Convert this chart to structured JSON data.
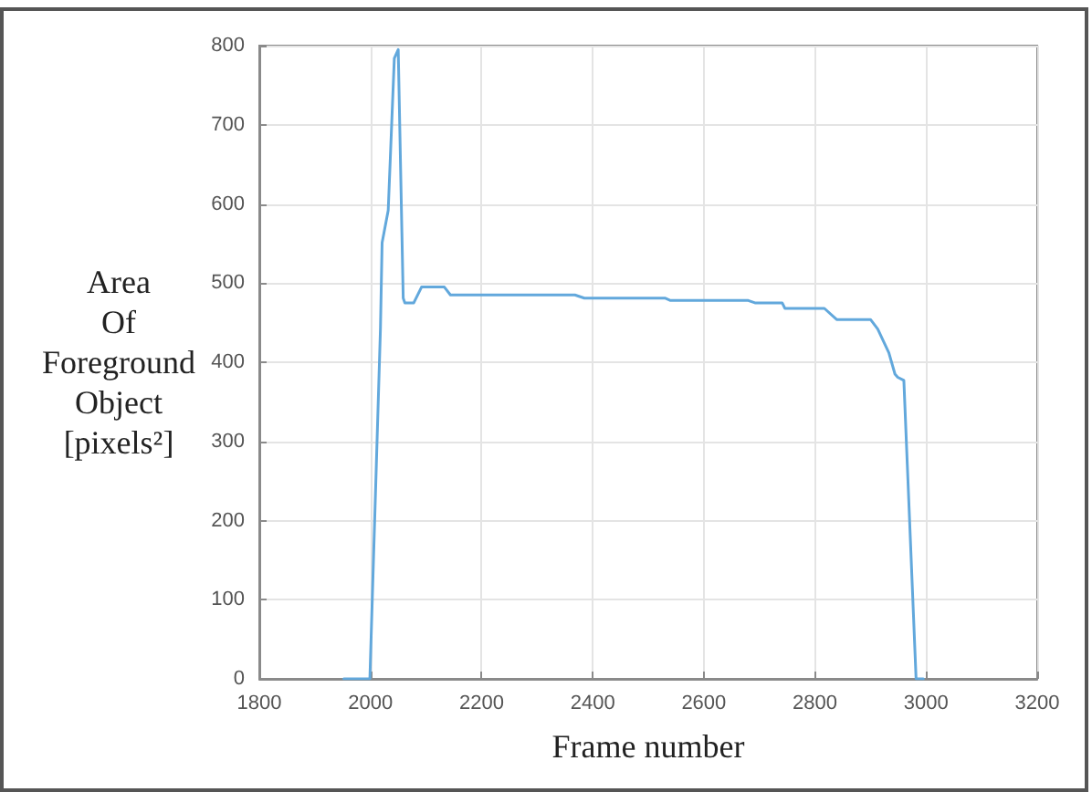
{
  "chart_data": {
    "type": "line",
    "xlabel": "Frame number",
    "ylabel": "Area Of Foreground Object [pixels²]",
    "x": [
      1952,
      1999,
      2018,
      2021,
      2032,
      2043,
      2050,
      2059,
      2062,
      2078,
      2092,
      2133,
      2144,
      2368,
      2385,
      2530,
      2540,
      2680,
      2692,
      2741,
      2746,
      2817,
      2839,
      2900,
      2913,
      2933,
      2944,
      2949,
      2960,
      2982,
      2995
    ],
    "values": [
      0,
      0,
      442,
      551,
      592,
      784,
      795,
      481,
      475,
      475,
      495,
      495,
      485,
      485,
      481,
      481,
      478,
      478,
      475,
      475,
      468,
      468,
      454,
      454,
      442,
      412,
      385,
      381,
      377,
      0,
      0
    ],
    "color": "#62a8dc",
    "xlim": [
      1800,
      3200
    ],
    "xticks": [
      1800,
      2000,
      2200,
      2400,
      2600,
      2800,
      3000,
      3200
    ],
    "ylim": [
      0,
      800
    ],
    "yticks": [
      0,
      100,
      200,
      300,
      400,
      500,
      600,
      700,
      800
    ],
    "grid": true,
    "marker": "none",
    "line_style": "solid"
  }
}
